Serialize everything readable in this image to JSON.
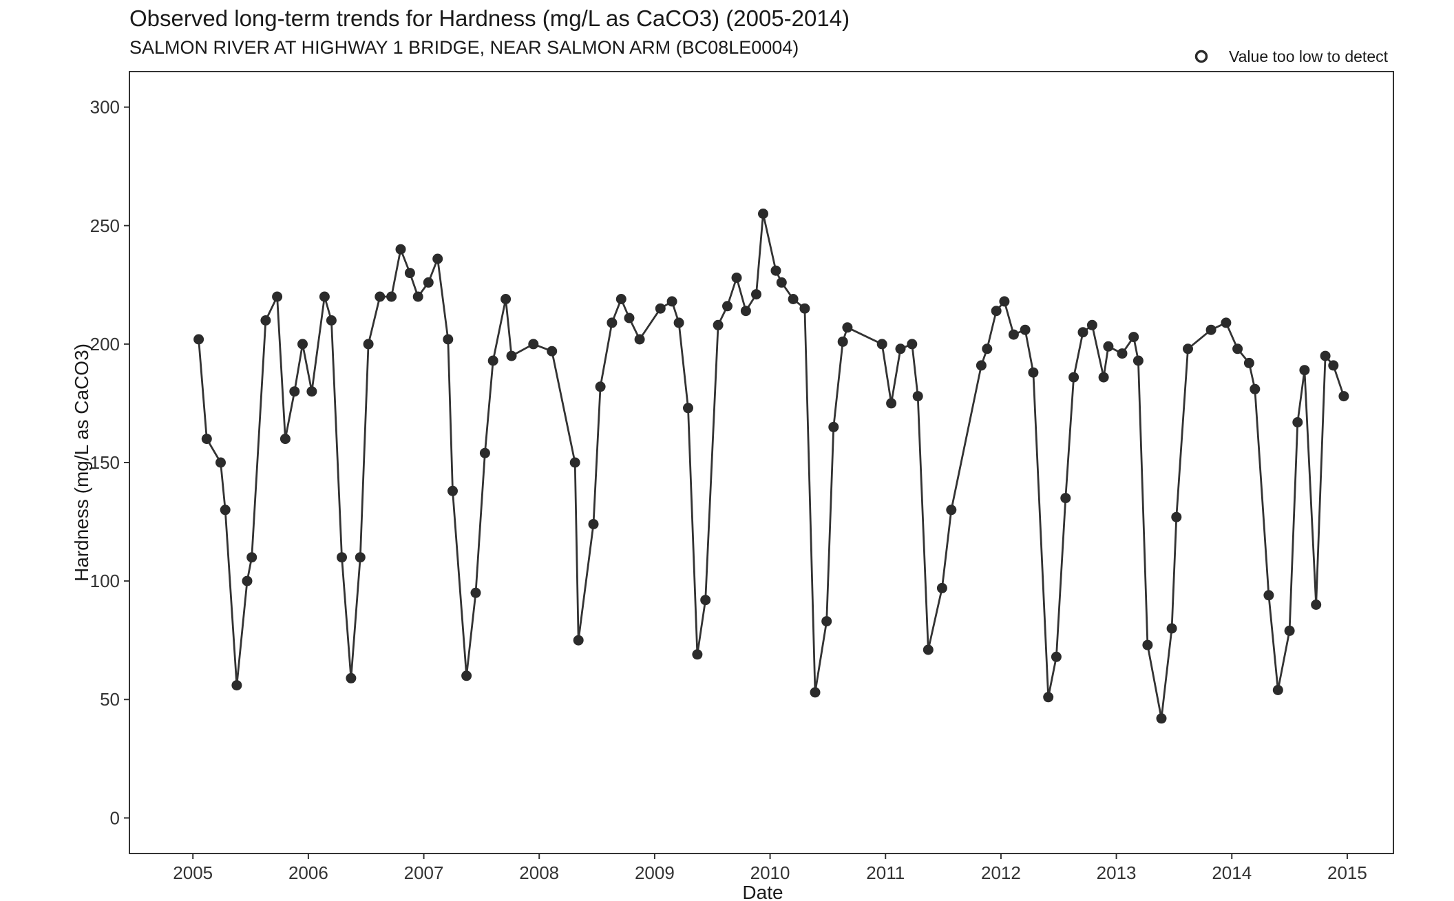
{
  "chart_data": {
    "type": "line",
    "title": "Observed long-term trends for Hardness (mg/L as CaCO3) (2005-2014)",
    "subtitle": "SALMON RIVER AT HIGHWAY 1 BRIDGE, NEAR SALMON ARM (BC08LE0004)",
    "xlabel": "Date",
    "ylabel": "Hardness (mg/L as CaCO3)",
    "xlim": [
      2004.45,
      2015.4
    ],
    "ylim": [
      -15,
      315
    ],
    "x_ticks": [
      2005,
      2006,
      2007,
      2008,
      2009,
      2010,
      2011,
      2012,
      2013,
      2014,
      2015
    ],
    "x_tick_labels": [
      "2005",
      "2006",
      "2007",
      "2008",
      "2009",
      "2010",
      "2011",
      "2012",
      "2013",
      "2014",
      "2015"
    ],
    "y_ticks": [
      0,
      50,
      100,
      150,
      200,
      250,
      300
    ],
    "y_tick_labels": [
      "0",
      "50",
      "100",
      "150",
      "200",
      "250",
      "300"
    ],
    "grid": false,
    "legend": {
      "placement": "top-right",
      "entries": [
        {
          "label": "Value too low to detect",
          "marker": "open-circle"
        }
      ]
    },
    "colors": {
      "line": "#333333",
      "marker": "#2b2b2b",
      "frame": "#333333"
    },
    "series": [
      {
        "x": [
          2005.05,
          2005.12,
          2005.24,
          2005.28,
          2005.38,
          2005.47,
          2005.51,
          2005.63,
          2005.73,
          2005.8,
          2005.88,
          2005.95,
          2006.03,
          2006.14,
          2006.2,
          2006.29,
          2006.37,
          2006.45,
          2006.52,
          2006.62,
          2006.72,
          2006.8,
          2006.88,
          2006.95,
          2007.04,
          2007.12,
          2007.21,
          2007.25,
          2007.37,
          2007.45,
          2007.53,
          2007.6,
          2007.71,
          2007.76,
          2007.95,
          2008.11,
          2008.31,
          2008.34,
          2008.47,
          2008.53,
          2008.63,
          2008.71,
          2008.78,
          2008.87,
          2009.05,
          2009.15,
          2009.21,
          2009.29,
          2009.37,
          2009.44,
          2009.55,
          2009.63,
          2009.71,
          2009.79,
          2009.88,
          2009.94,
          2010.05,
          2010.1,
          2010.2,
          2010.3,
          2010.39,
          2010.49,
          2010.55,
          2010.63,
          2010.67,
          2010.97,
          2011.05,
          2011.13,
          2011.23,
          2011.28,
          2011.37,
          2011.49,
          2011.57,
          2011.83,
          2011.88,
          2011.96,
          2012.03,
          2012.11,
          2012.21,
          2012.28,
          2012.41,
          2012.48,
          2012.56,
          2012.63,
          2012.71,
          2012.79,
          2012.89,
          2012.93,
          2013.05,
          2013.15,
          2013.19,
          2013.27,
          2013.39,
          2013.48,
          2013.52,
          2013.62,
          2013.82,
          2013.95,
          2014.05,
          2014.15,
          2014.2,
          2014.32,
          2014.4,
          2014.5,
          2014.57,
          2014.63,
          2014.73,
          2014.81,
          2014.88,
          2014.97
        ],
        "y": [
          202,
          160,
          150,
          130,
          56,
          100,
          110,
          210,
          220,
          160,
          180,
          200,
          180,
          220,
          210,
          110,
          59,
          110,
          200,
          220,
          220,
          240,
          230,
          220,
          226,
          236,
          202,
          138,
          60,
          95,
          154,
          193,
          219,
          195,
          200,
          197,
          150,
          75,
          124,
          182,
          209,
          219,
          211,
          202,
          215,
          218,
          209,
          173,
          69,
          92,
          208,
          216,
          228,
          214,
          221,
          255,
          231,
          226,
          219,
          215,
          53,
          83,
          165,
          201,
          207,
          200,
          175,
          198,
          200,
          178,
          71,
          97,
          130,
          191,
          198,
          214,
          218,
          204,
          206,
          188,
          51,
          68,
          135,
          186,
          205,
          208,
          186,
          199,
          196,
          203,
          193,
          73,
          42,
          80,
          127,
          198,
          206,
          209,
          198,
          192,
          181,
          94,
          54,
          79,
          167,
          189,
          90,
          195,
          191,
          178
        ]
      }
    ]
  }
}
